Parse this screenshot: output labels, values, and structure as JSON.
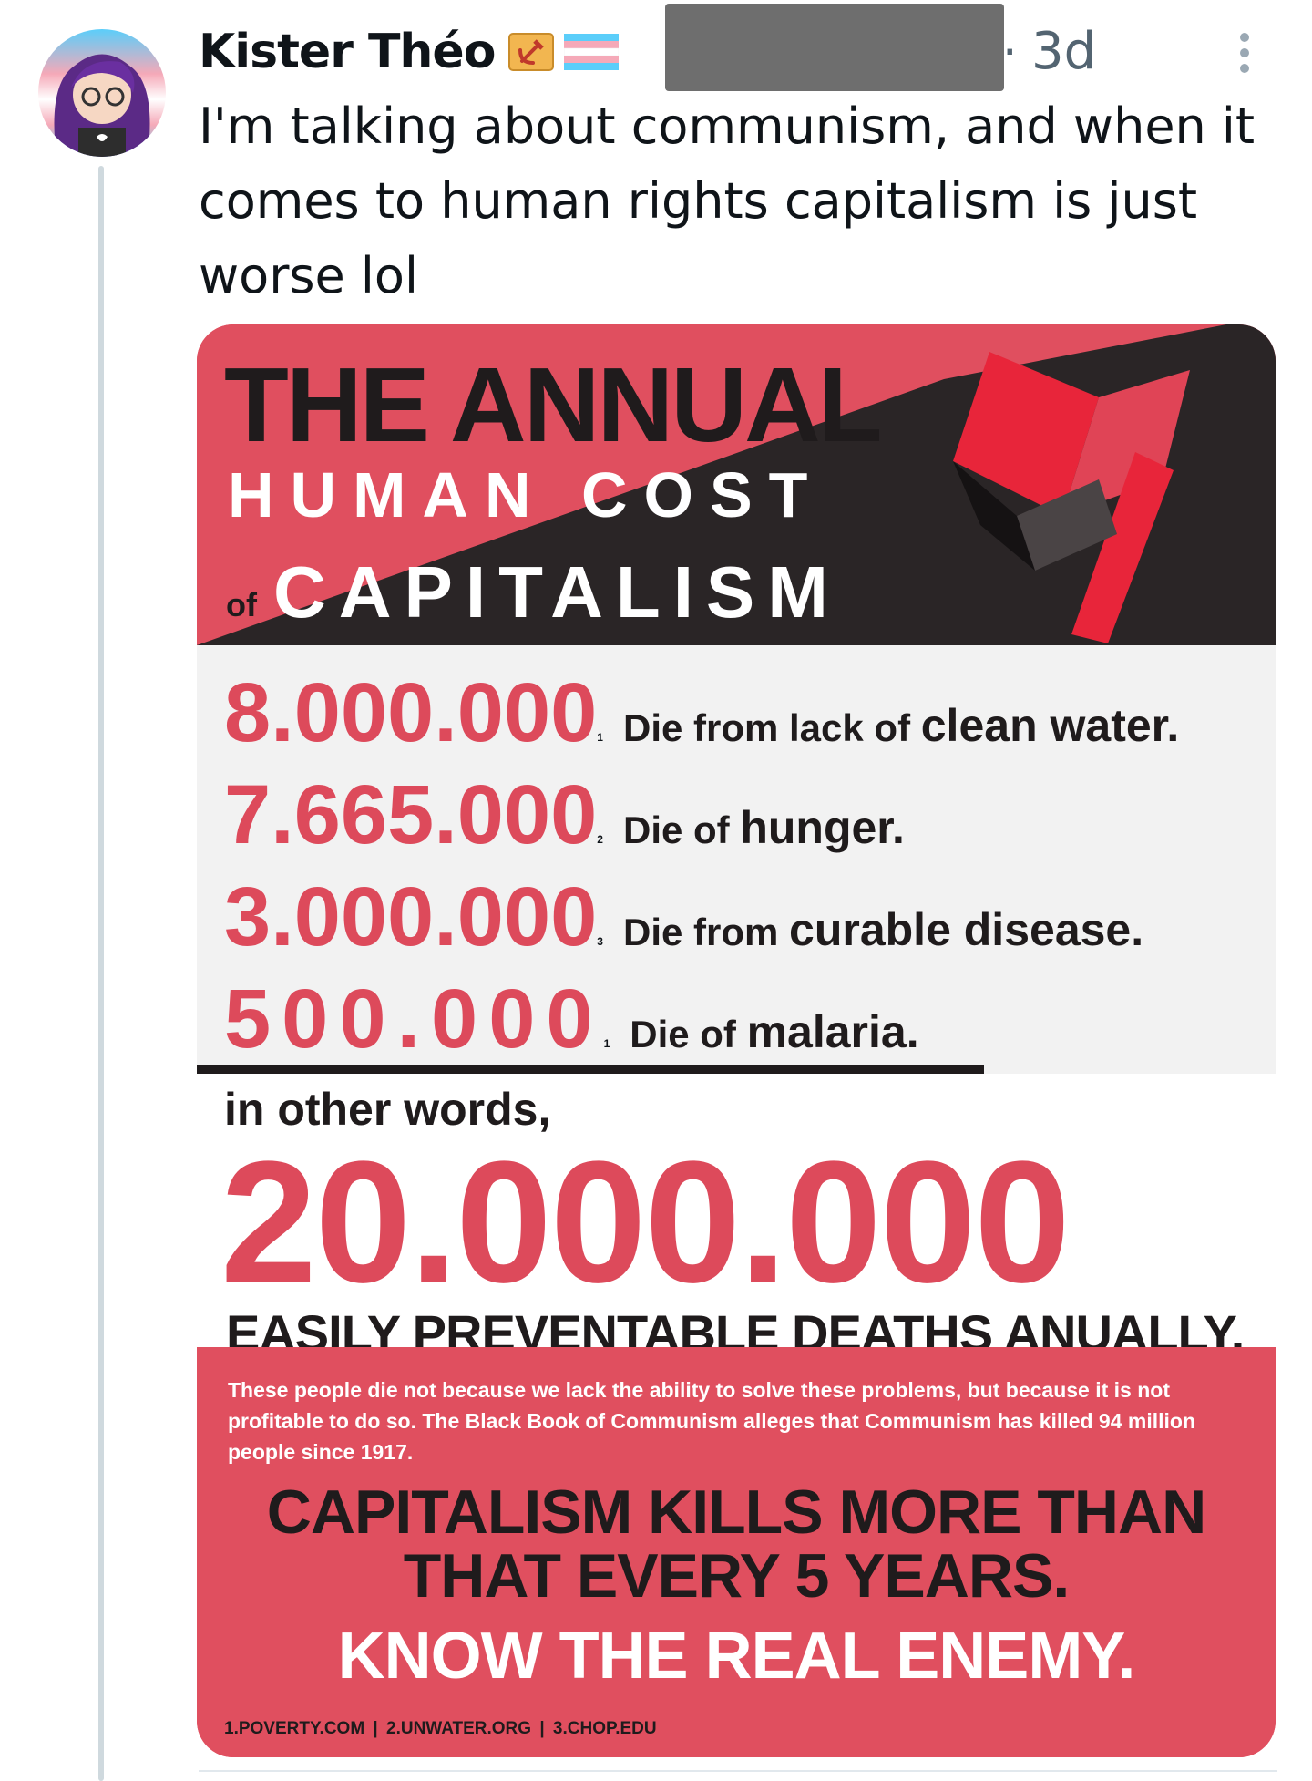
{
  "tweet": {
    "author": "Kister Théo",
    "timestamp_prefix": "·",
    "timestamp": "3d",
    "text": "I'm talking about communism, and when it comes to human rights capitalism is just worse lol"
  },
  "image_card": {
    "title_line1": "THE ANNUAL",
    "title_line2": "HUMAN COST",
    "title_of": "of",
    "title_line3": "CAPITALISM",
    "stats": [
      {
        "number": "8.000.000",
        "sup": "1",
        "text_small": "Die from lack of",
        "text_big": "clean water."
      },
      {
        "number": "7.665.000",
        "sup": "2",
        "text_small": "Die of",
        "text_big": "hunger."
      },
      {
        "number": "3.000.000",
        "sup": "3",
        "text_small": "Die from",
        "text_big": "curable disease."
      },
      {
        "number": "500.000",
        "sup": "1",
        "text_small": "Die of",
        "text_big": "malaria."
      }
    ],
    "in_other_words": "in other words,",
    "total": "20.000.000",
    "total_caption": "EASILY PREVENTABLE DEATHS ANUALLY.",
    "fine_print": "These people die not because we lack the ability to solve these problems, but because it is not profitable to do so. The Black Book of Communism alleges that Communism has killed 94 million people since 1917.",
    "kills_line1": "CAPITALISM KILLS MORE THAN",
    "kills_line2": "THAT EVERY 5 YEARS.",
    "enemy": "KNOW THE REAL ENEMY.",
    "sources": "1.POVERTY.COM  |  2.UNWATER.ORG  |  3.CHOP.EDU"
  },
  "colors": {
    "accent_red": "#e04f5f",
    "number_red": "#dd4a5b",
    "dark": "#1f1b1c",
    "muted": "#536471"
  },
  "icons": [
    "avatar",
    "hammer-sickle-badge-icon",
    "trans-flag-icon",
    "more-options-icon",
    "red-flag-icon"
  ]
}
